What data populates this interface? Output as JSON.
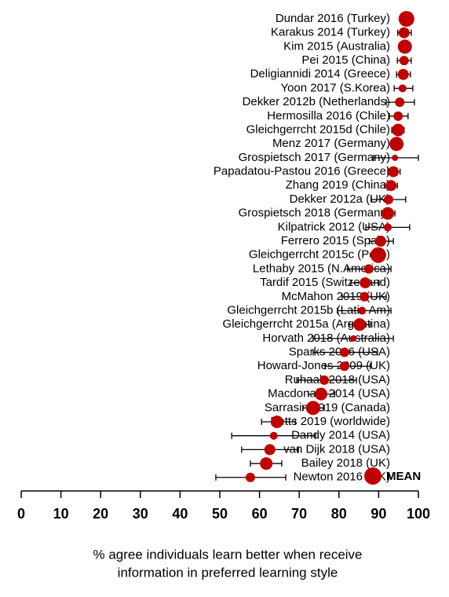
{
  "chart_data": {
    "type": "dot",
    "categories": [
      "Dundar 2016 (Turkey)",
      "Karakus 2014 (Turkey)",
      "Kim 2015 (Australia)",
      "Pei 2015 (China)",
      "Deligiannidi 2014 (Greece)",
      "Yoon 2017 (S.Korea)",
      "Dekker 2012b (Netherlands)",
      "Hermosilla 2016 (Chile)",
      "Gleichgerrcht 2015d (Chile)",
      "Menz 2017 (Germany)",
      "Grospietsch 2017 (Germany)",
      "Papadatou-Pastou 2016 (Greece)",
      "Zhang 2019 (China)",
      "Dekker 2012a (UK)",
      "Grospietsch 2018 (Germany)",
      "Kilpatrick 2012 (USA)",
      "Ferrero 2015 (Spain)",
      "Gleichgerrcht 2015c (Peru)",
      "Lethaby 2015 (N.America)",
      "Tardif 2015 (Switzerland)",
      "McMahon 2019 (UK)",
      "Gleichgerrcht 2015b (Latin Am)",
      "Gleichgerrcht 2015a (Argentina)",
      "Horvath 2018 (Australia)",
      "Sparks 2016 (USA)",
      "Howard-Jones 2009 (UK)",
      "Ruhaak 2018 (USA)",
      "Macdonald 2014 (USA)",
      "Sarrasin 2019 (Canada)",
      "Betts 2019 (worldwide)",
      "Dandy 2014 (USA)",
      "van Dijk 2018 (USA)",
      "Bailey 2018 (UK)",
      "Newton 2016 (UK)"
    ],
    "series": [
      {
        "name": "MEAN",
        "color": "#c00000",
        "values": [
          97.0,
          96.4,
          96.6,
          96.4,
          96.2,
          96.0,
          95.3,
          94.9,
          94.9,
          94.5,
          94.1,
          93.7,
          93.1,
          92.5,
          92.3,
          92.3,
          90.5,
          89.9,
          87.5,
          86.6,
          86.4,
          85.8,
          85.2,
          83.6,
          81.4,
          81.4,
          76.3,
          75.5,
          73.5,
          64.4,
          63.6,
          62.6,
          61.7,
          57.7
        ],
        "lower": [
          null,
          94.8,
          null,
          94.7,
          94.5,
          93.9,
          91.9,
          92.7,
          93.3,
          null,
          88.7,
          92.3,
          91.5,
          88.1,
          90.7,
          86.8,
          87.7,
          null,
          82.2,
          83.0,
          80.8,
          79.6,
          82.6,
          73.5,
          73.5,
          76.5,
          69.4,
          72.3,
          70.9,
          60.5,
          53.0,
          55.5,
          57.7,
          49.0
        ],
        "upper": [
          null,
          98.2,
          null,
          98.2,
          98.0,
          98.6,
          99.0,
          97.4,
          96.4,
          null,
          100,
          95.4,
          94.7,
          96.8,
          94.1,
          97.8,
          93.7,
          null,
          93.1,
          90.1,
          91.9,
          93.1,
          87.9,
          93.7,
          89.7,
          87.9,
          84.4,
          78.9,
          76.3,
          69.0,
          74.1,
          69.8,
          65.6,
          66.6
        ],
        "sizes": [
          10,
          7,
          9,
          6,
          7,
          5,
          6,
          6,
          8,
          9,
          4,
          7,
          7,
          6,
          8,
          5,
          7,
          10,
          6,
          7,
          6,
          5,
          8,
          4,
          6,
          6,
          6,
          8,
          9,
          8,
          5,
          7,
          8,
          6
        ]
      }
    ],
    "xlim": [
      0,
      100
    ],
    "xticks": [
      0,
      10,
      20,
      30,
      40,
      50,
      60,
      70,
      80,
      90,
      100
    ],
    "xlabel": [
      "%  agree individuals learn better when receive",
      "information in preferred learning style"
    ],
    "legend": "bottom-right"
  }
}
